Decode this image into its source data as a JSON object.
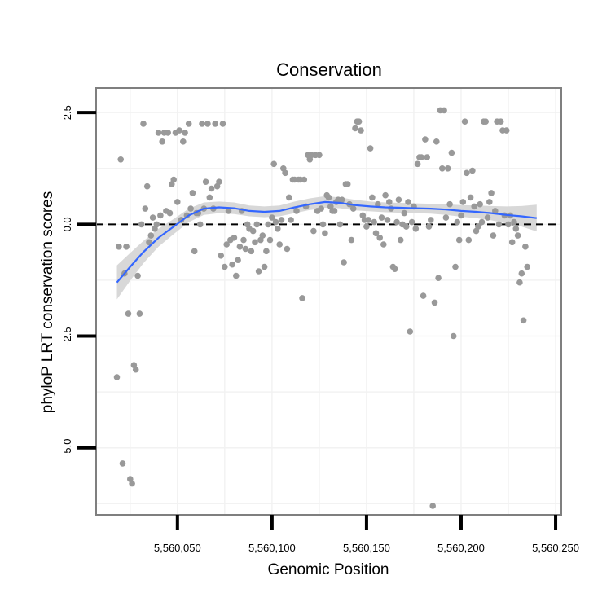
{
  "chart_data": {
    "type": "scatter",
    "title": "Conservation",
    "xlabel": "Genomic Position",
    "ylabel": "phyloP LRT conservation scores",
    "xlim": [
      5560007,
      5560253
    ],
    "ylim": [
      -6.5,
      3.05
    ],
    "x_ticks": [
      5560050,
      5560100,
      5560150,
      5560200,
      5560250
    ],
    "x_tick_labels": [
      "5,560,050",
      "5,560,100",
      "5,560,150",
      "5,560,200",
      "5,560,250"
    ],
    "y_ticks": [
      2.5,
      0.0,
      -2.5,
      -5.0
    ],
    "y_tick_labels": [
      "2.5",
      "0.0",
      "-2.5",
      "-5.0"
    ],
    "reference_line": {
      "y": 0,
      "style": "dashed"
    },
    "colors": {
      "points": "#999999",
      "smooth": "#3366FF",
      "band": "#d4d4d4",
      "panel_border": "#7f7f7f",
      "grid": "#f2f2f2"
    },
    "points": [
      [
        5560018,
        -3.42
      ],
      [
        5560019,
        -0.5
      ],
      [
        5560020,
        1.45
      ],
      [
        5560021,
        -5.35
      ],
      [
        5560022,
        -1.1
      ],
      [
        5560023,
        -0.5
      ],
      [
        5560024,
        -2.0
      ],
      [
        5560025,
        -5.7
      ],
      [
        5560026,
        -5.8
      ],
      [
        5560027,
        -3.15
      ],
      [
        5560028,
        -3.25
      ],
      [
        5560029,
        -1.15
      ],
      [
        5560030,
        -2.0
      ],
      [
        5560031,
        0.0
      ],
      [
        5560032,
        2.25
      ],
      [
        5560033,
        0.35
      ],
      [
        5560034,
        0.85
      ],
      [
        5560035,
        -0.4
      ],
      [
        5560036,
        -0.25
      ],
      [
        5560037,
        0.15
      ],
      [
        5560038,
        -0.1
      ],
      [
        5560039,
        0.0
      ],
      [
        5560040,
        2.05
      ],
      [
        5560041,
        0.2
      ],
      [
        5560042,
        1.85
      ],
      [
        5560043,
        2.05
      ],
      [
        5560044,
        0.3
      ],
      [
        5560045,
        2.05
      ],
      [
        5560046,
        0.25
      ],
      [
        5560047,
        0.9
      ],
      [
        5560048,
        1.0
      ],
      [
        5560049,
        2.05
      ],
      [
        5560050,
        0.5
      ],
      [
        5560051,
        2.1
      ],
      [
        5560052,
        0.1
      ],
      [
        5560053,
        1.85
      ],
      [
        5560054,
        2.05
      ],
      [
        5560055,
        0.2
      ],
      [
        5560056,
        2.25
      ],
      [
        5560057,
        0.35
      ],
      [
        5560058,
        0.7
      ],
      [
        5560059,
        -0.6
      ],
      [
        5560060,
        0.25
      ],
      [
        5560061,
        0.25
      ],
      [
        5560062,
        0.0
      ],
      [
        5560063,
        2.25
      ],
      [
        5560064,
        0.35
      ],
      [
        5560065,
        0.95
      ],
      [
        5560066,
        2.25
      ],
      [
        5560067,
        0.6
      ],
      [
        5560068,
        0.8
      ],
      [
        5560069,
        0.35
      ],
      [
        5560070,
        2.25
      ],
      [
        5560071,
        0.85
      ],
      [
        5560072,
        0.95
      ],
      [
        5560073,
        -0.7
      ],
      [
        5560074,
        2.25
      ],
      [
        5560075,
        -0.95
      ],
      [
        5560076,
        -0.45
      ],
      [
        5560077,
        0.3
      ],
      [
        5560078,
        -0.35
      ],
      [
        5560079,
        -0.9
      ],
      [
        5560080,
        -0.3
      ],
      [
        5560081,
        -1.15
      ],
      [
        5560082,
        -0.8
      ],
      [
        5560083,
        -0.5
      ],
      [
        5560084,
        0.3
      ],
      [
        5560085,
        -0.35
      ],
      [
        5560086,
        -0.55
      ],
      [
        5560087,
        0.0
      ],
      [
        5560088,
        -0.1
      ],
      [
        5560089,
        -0.6
      ],
      [
        5560090,
        -0.15
      ],
      [
        5560091,
        -0.4
      ],
      [
        5560092,
        0.0
      ],
      [
        5560093,
        -1.05
      ],
      [
        5560094,
        -0.35
      ],
      [
        5560095,
        -0.25
      ],
      [
        5560096,
        -0.95
      ],
      [
        5560097,
        -0.6
      ],
      [
        5560098,
        0.0
      ],
      [
        5560099,
        -0.35
      ],
      [
        5560100,
        0.15
      ],
      [
        5560101,
        1.35
      ],
      [
        5560102,
        0.05
      ],
      [
        5560103,
        -0.1
      ],
      [
        5560104,
        -0.45
      ],
      [
        5560105,
        0.1
      ],
      [
        5560106,
        1.25
      ],
      [
        5560107,
        1.15
      ],
      [
        5560108,
        -0.55
      ],
      [
        5560109,
        0.6
      ],
      [
        5560110,
        0.1
      ],
      [
        5560111,
        1.0
      ],
      [
        5560112,
        1.0
      ],
      [
        5560113,
        0.3
      ],
      [
        5560114,
        1.0
      ],
      [
        5560115,
        1.0
      ],
      [
        5560116,
        -1.65
      ],
      [
        5560117,
        1.0
      ],
      [
        5560118,
        0.4
      ],
      [
        5560119,
        1.55
      ],
      [
        5560120,
        1.45
      ],
      [
        5560121,
        1.55
      ],
      [
        5560122,
        -0.15
      ],
      [
        5560123,
        1.55
      ],
      [
        5560124,
        0.3
      ],
      [
        5560125,
        1.55
      ],
      [
        5560126,
        0.35
      ],
      [
        5560127,
        0.0
      ],
      [
        5560128,
        -0.2
      ],
      [
        5560129,
        0.65
      ],
      [
        5560130,
        0.6
      ],
      [
        5560131,
        0.4
      ],
      [
        5560132,
        0.3
      ],
      [
        5560133,
        0.3
      ],
      [
        5560134,
        0.5
      ],
      [
        5560135,
        0.55
      ],
      [
        5560136,
        0.0
      ],
      [
        5560137,
        0.55
      ],
      [
        5560138,
        -0.85
      ],
      [
        5560139,
        0.9
      ],
      [
        5560140,
        0.9
      ],
      [
        5560141,
        0.45
      ],
      [
        5560142,
        -0.35
      ],
      [
        5560143,
        0.35
      ],
      [
        5560144,
        2.15
      ],
      [
        5560145,
        2.3
      ],
      [
        5560146,
        2.3
      ],
      [
        5560147,
        2.1
      ],
      [
        5560148,
        0.2
      ],
      [
        5560149,
        0.1
      ],
      [
        5560150,
        -0.05
      ],
      [
        5560151,
        0.1
      ],
      [
        5560152,
        1.7
      ],
      [
        5560153,
        0.6
      ],
      [
        5560154,
        0.05
      ],
      [
        5560155,
        -0.2
      ],
      [
        5560156,
        0.45
      ],
      [
        5560157,
        -0.3
      ],
      [
        5560158,
        0.15
      ],
      [
        5560159,
        -0.45
      ],
      [
        5560160,
        0.65
      ],
      [
        5560161,
        0.1
      ],
      [
        5560162,
        0.5
      ],
      [
        5560163,
        0.35
      ],
      [
        5560164,
        -0.95
      ],
      [
        5560165,
        -1.0
      ],
      [
        5560166,
        0.05
      ],
      [
        5560167,
        0.55
      ],
      [
        5560168,
        -0.35
      ],
      [
        5560169,
        0.0
      ],
      [
        5560170,
        0.25
      ],
      [
        5560171,
        -0.05
      ],
      [
        5560172,
        0.5
      ],
      [
        5560173,
        -2.4
      ],
      [
        5560174,
        0.05
      ],
      [
        5560175,
        0.4
      ],
      [
        5560176,
        -0.1
      ],
      [
        5560177,
        1.35
      ],
      [
        5560178,
        1.5
      ],
      [
        5560179,
        1.5
      ],
      [
        5560180,
        -1.6
      ],
      [
        5560181,
        1.9
      ],
      [
        5560182,
        1.5
      ],
      [
        5560183,
        -0.05
      ],
      [
        5560184,
        0.1
      ],
      [
        5560185,
        -6.3
      ],
      [
        5560186,
        -1.75
      ],
      [
        5560187,
        1.85
      ],
      [
        5560188,
        -1.2
      ],
      [
        5560189,
        2.55
      ],
      [
        5560190,
        1.25
      ],
      [
        5560191,
        2.55
      ],
      [
        5560192,
        0.15
      ],
      [
        5560193,
        1.25
      ],
      [
        5560194,
        0.45
      ],
      [
        5560195,
        1.6
      ],
      [
        5560196,
        -2.5
      ],
      [
        5560197,
        -0.95
      ],
      [
        5560198,
        0.05
      ],
      [
        5560199,
        -0.35
      ],
      [
        5560200,
        0.2
      ],
      [
        5560201,
        0.5
      ],
      [
        5560202,
        2.3
      ],
      [
        5560203,
        1.15
      ],
      [
        5560204,
        -0.35
      ],
      [
        5560205,
        0.6
      ],
      [
        5560206,
        1.2
      ],
      [
        5560207,
        0.4
      ],
      [
        5560208,
        -0.15
      ],
      [
        5560209,
        -0.05
      ],
      [
        5560210,
        0.45
      ],
      [
        5560211,
        0.05
      ],
      [
        5560212,
        2.3
      ],
      [
        5560213,
        2.3
      ],
      [
        5560214,
        0.15
      ],
      [
        5560215,
        0.5
      ],
      [
        5560216,
        0.7
      ],
      [
        5560217,
        -0.25
      ],
      [
        5560218,
        0.3
      ],
      [
        5560219,
        2.3
      ],
      [
        5560220,
        0.0
      ],
      [
        5560221,
        2.3
      ],
      [
        5560222,
        2.1
      ],
      [
        5560223,
        0.2
      ],
      [
        5560224,
        2.1
      ],
      [
        5560225,
        0.0
      ],
      [
        5560226,
        0.2
      ],
      [
        5560227,
        -0.4
      ],
      [
        5560228,
        0.05
      ],
      [
        5560229,
        -0.1
      ],
      [
        5560230,
        -0.25
      ],
      [
        5560231,
        -1.3
      ],
      [
        5560232,
        -1.1
      ],
      [
        5560233,
        -2.15
      ],
      [
        5560234,
        -0.5
      ],
      [
        5560235,
        -0.95
      ]
    ],
    "smooth": [
      [
        5560018,
        -1.3
      ],
      [
        5560025,
        -0.95
      ],
      [
        5560032,
        -0.62
      ],
      [
        5560040,
        -0.3
      ],
      [
        5560048,
        -0.05
      ],
      [
        5560056,
        0.2
      ],
      [
        5560064,
        0.35
      ],
      [
        5560072,
        0.38
      ],
      [
        5560080,
        0.36
      ],
      [
        5560088,
        0.3
      ],
      [
        5560096,
        0.28
      ],
      [
        5560104,
        0.3
      ],
      [
        5560112,
        0.38
      ],
      [
        5560120,
        0.45
      ],
      [
        5560128,
        0.5
      ],
      [
        5560136,
        0.48
      ],
      [
        5560144,
        0.43
      ],
      [
        5560152,
        0.4
      ],
      [
        5560160,
        0.38
      ],
      [
        5560168,
        0.37
      ],
      [
        5560176,
        0.36
      ],
      [
        5560184,
        0.35
      ],
      [
        5560192,
        0.33
      ],
      [
        5560200,
        0.3
      ],
      [
        5560208,
        0.28
      ],
      [
        5560216,
        0.25
      ],
      [
        5560224,
        0.21
      ],
      [
        5560232,
        0.18
      ],
      [
        5560240,
        0.14
      ]
    ],
    "band_halfwidth": [
      0.38,
      0.31,
      0.25,
      0.2,
      0.17,
      0.15,
      0.14,
      0.13,
      0.13,
      0.12,
      0.12,
      0.12,
      0.13,
      0.13,
      0.13,
      0.12,
      0.12,
      0.11,
      0.11,
      0.11,
      0.11,
      0.11,
      0.12,
      0.13,
      0.14,
      0.16,
      0.19,
      0.23,
      0.3
    ]
  }
}
